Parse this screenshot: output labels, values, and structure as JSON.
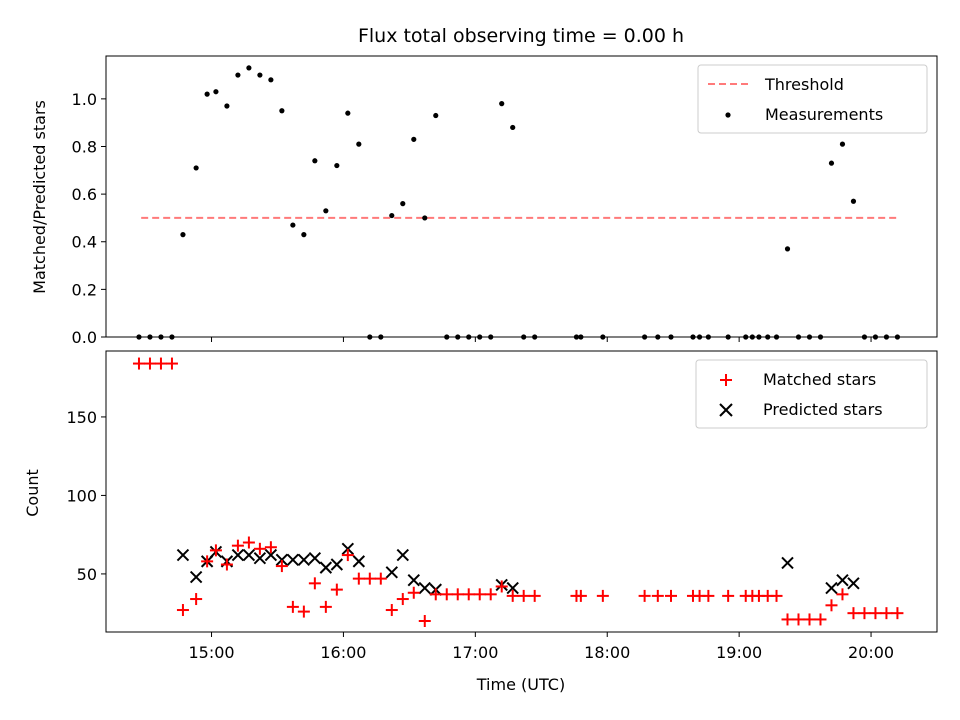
{
  "chart_data": [
    {
      "type": "scatter",
      "title": "Flux total observing time = 0.00 h",
      "xlabel": "",
      "ylabel": "Matched/Predicted stars",
      "ylim": [
        0,
        1.18
      ],
      "yticks": [
        "0.0",
        "0.2",
        "0.4",
        "0.6",
        "0.8",
        "1.0"
      ],
      "xlim": [
        "14:12",
        "20:30"
      ],
      "legend_position": "top-right",
      "threshold": {
        "name": "Threshold",
        "value": 0.5,
        "x_start": "14:28",
        "x_end": "20:13",
        "color": "#ff7a7a",
        "style": "dashed"
      },
      "series": [
        {
          "name": "Measurements",
          "color": "#000000",
          "marker": "dot",
          "points": [
            [
              "14:27",
              0
            ],
            [
              "14:32",
              0
            ],
            [
              "14:37",
              0
            ],
            [
              "14:42",
              0
            ],
            [
              "14:47",
              0.43
            ],
            [
              "14:53",
              0.71
            ],
            [
              "14:58",
              1.02
            ],
            [
              "15:02",
              1.03
            ],
            [
              "15:07",
              0.97
            ],
            [
              "15:12",
              1.1
            ],
            [
              "15:17",
              1.13
            ],
            [
              "15:22",
              1.1
            ],
            [
              "15:27",
              1.08
            ],
            [
              "15:32",
              0.95
            ],
            [
              "15:37",
              0.47
            ],
            [
              "15:42",
              0.43
            ],
            [
              "15:47",
              0.74
            ],
            [
              "15:52",
              0.53
            ],
            [
              "15:57",
              0.72
            ],
            [
              "16:02",
              0.94
            ],
            [
              "16:07",
              0.81
            ],
            [
              "16:12",
              0
            ],
            [
              "16:17",
              0
            ],
            [
              "16:22",
              0.51
            ],
            [
              "16:27",
              0.56
            ],
            [
              "16:32",
              0.83
            ],
            [
              "16:37",
              0.5
            ],
            [
              "16:42",
              0.93
            ],
            [
              "16:47",
              0
            ],
            [
              "16:52",
              0
            ],
            [
              "16:57",
              0
            ],
            [
              "17:02",
              0
            ],
            [
              "17:07",
              0
            ],
            [
              "17:12",
              0.98
            ],
            [
              "17:17",
              0.88
            ],
            [
              "17:22",
              0
            ],
            [
              "17:27",
              0
            ],
            [
              "17:46",
              0
            ],
            [
              "17:48",
              0
            ],
            [
              "17:58",
              0
            ],
            [
              "18:17",
              0
            ],
            [
              "18:23",
              0
            ],
            [
              "18:29",
              0
            ],
            [
              "18:39",
              0
            ],
            [
              "18:42",
              0
            ],
            [
              "18:46",
              0
            ],
            [
              "18:55",
              0
            ],
            [
              "19:03",
              0
            ],
            [
              "19:06",
              0
            ],
            [
              "19:09",
              0
            ],
            [
              "19:13",
              0
            ],
            [
              "19:17",
              0
            ],
            [
              "19:22",
              0.37
            ],
            [
              "19:27",
              0
            ],
            [
              "19:32",
              0
            ],
            [
              "19:37",
              0
            ],
            [
              "19:42",
              0.73
            ],
            [
              "19:47",
              0.81
            ],
            [
              "19:52",
              0.57
            ],
            [
              "19:57",
              0
            ],
            [
              "20:02",
              0
            ],
            [
              "20:07",
              0
            ],
            [
              "20:12",
              0
            ]
          ]
        }
      ]
    },
    {
      "type": "scatter",
      "title": "",
      "xlabel": "Time (UTC)",
      "ylabel": "Count",
      "ylim": [
        13,
        192
      ],
      "yticks": [
        "50",
        "100",
        "150"
      ],
      "xticks": [
        "15:00",
        "16:00",
        "17:00",
        "18:00",
        "19:00",
        "20:00"
      ],
      "xlim": [
        "14:12",
        "20:30"
      ],
      "legend_position": "top-right",
      "series": [
        {
          "name": "Matched stars",
          "color": "#ff0000",
          "marker": "plus",
          "points": [
            [
              "14:27",
              184
            ],
            [
              "14:32",
              184
            ],
            [
              "14:37",
              184
            ],
            [
              "14:42",
              184
            ],
            [
              "14:47",
              27
            ],
            [
              "14:53",
              34
            ],
            [
              "14:58",
              58
            ],
            [
              "15:02",
              65
            ],
            [
              "15:07",
              56
            ],
            [
              "15:12",
              68
            ],
            [
              "15:17",
              70
            ],
            [
              "15:22",
              66
            ],
            [
              "15:27",
              67
            ],
            [
              "15:32",
              55
            ],
            [
              "15:37",
              29
            ],
            [
              "15:42",
              26
            ],
            [
              "15:47",
              44
            ],
            [
              "15:52",
              29
            ],
            [
              "15:57",
              40
            ],
            [
              "16:02",
              62
            ],
            [
              "16:07",
              47
            ],
            [
              "16:12",
              47
            ],
            [
              "16:17",
              47
            ],
            [
              "16:22",
              27
            ],
            [
              "16:27",
              34
            ],
            [
              "16:32",
              38
            ],
            [
              "16:37",
              20
            ],
            [
              "16:42",
              37
            ],
            [
              "16:47",
              37
            ],
            [
              "16:52",
              37
            ],
            [
              "16:57",
              37
            ],
            [
              "17:02",
              37
            ],
            [
              "17:07",
              37
            ],
            [
              "17:12",
              42
            ],
            [
              "17:17",
              36
            ],
            [
              "17:22",
              36
            ],
            [
              "17:27",
              36
            ],
            [
              "17:46",
              36
            ],
            [
              "17:48",
              36
            ],
            [
              "17:58",
              36
            ],
            [
              "18:17",
              36
            ],
            [
              "18:23",
              36
            ],
            [
              "18:29",
              36
            ],
            [
              "18:39",
              36
            ],
            [
              "18:42",
              36
            ],
            [
              "18:46",
              36
            ],
            [
              "18:55",
              36
            ],
            [
              "19:03",
              36
            ],
            [
              "19:06",
              36
            ],
            [
              "19:09",
              36
            ],
            [
              "19:13",
              36
            ],
            [
              "19:17",
              36
            ],
            [
              "19:22",
              21
            ],
            [
              "19:27",
              21
            ],
            [
              "19:32",
              21
            ],
            [
              "19:37",
              21
            ],
            [
              "19:42",
              30
            ],
            [
              "19:47",
              37
            ],
            [
              "19:52",
              25
            ],
            [
              "19:57",
              25
            ],
            [
              "20:02",
              25
            ],
            [
              "20:07",
              25
            ],
            [
              "20:12",
              25
            ]
          ]
        },
        {
          "name": "Predicted stars",
          "color": "#000000",
          "marker": "x",
          "points": [
            [
              "14:47",
              62
            ],
            [
              "14:53",
              48
            ],
            [
              "14:58",
              58
            ],
            [
              "15:02",
              64
            ],
            [
              "15:07",
              58
            ],
            [
              "15:12",
              62
            ],
            [
              "15:17",
              62
            ],
            [
              "15:22",
              60
            ],
            [
              "15:27",
              62
            ],
            [
              "15:32",
              59
            ],
            [
              "15:37",
              59
            ],
            [
              "15:42",
              59
            ],
            [
              "15:47",
              60
            ],
            [
              "15:52",
              54
            ],
            [
              "15:57",
              56
            ],
            [
              "16:02",
              66
            ],
            [
              "16:07",
              58
            ],
            [
              "16:22",
              51
            ],
            [
              "16:27",
              62
            ],
            [
              "16:32",
              46
            ],
            [
              "16:37",
              41
            ],
            [
              "16:42",
              40
            ],
            [
              "17:12",
              43
            ],
            [
              "17:17",
              41
            ],
            [
              "19:22",
              57
            ],
            [
              "19:42",
              41
            ],
            [
              "19:47",
              46
            ],
            [
              "19:52",
              44
            ]
          ]
        }
      ]
    }
  ]
}
